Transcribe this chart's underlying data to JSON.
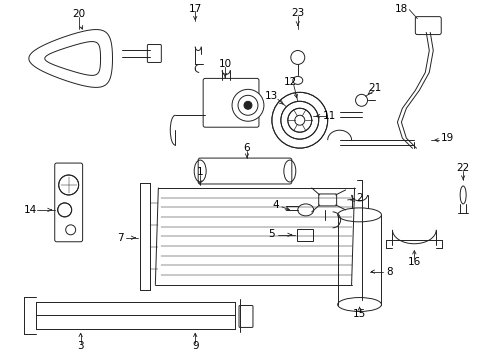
{
  "background_color": "#ffffff",
  "line_color": "#222222",
  "label_color": "#000000",
  "fig_width": 4.89,
  "fig_height": 3.6,
  "dpi": 100,
  "label_fontsize": 7.5,
  "lw": 0.7
}
